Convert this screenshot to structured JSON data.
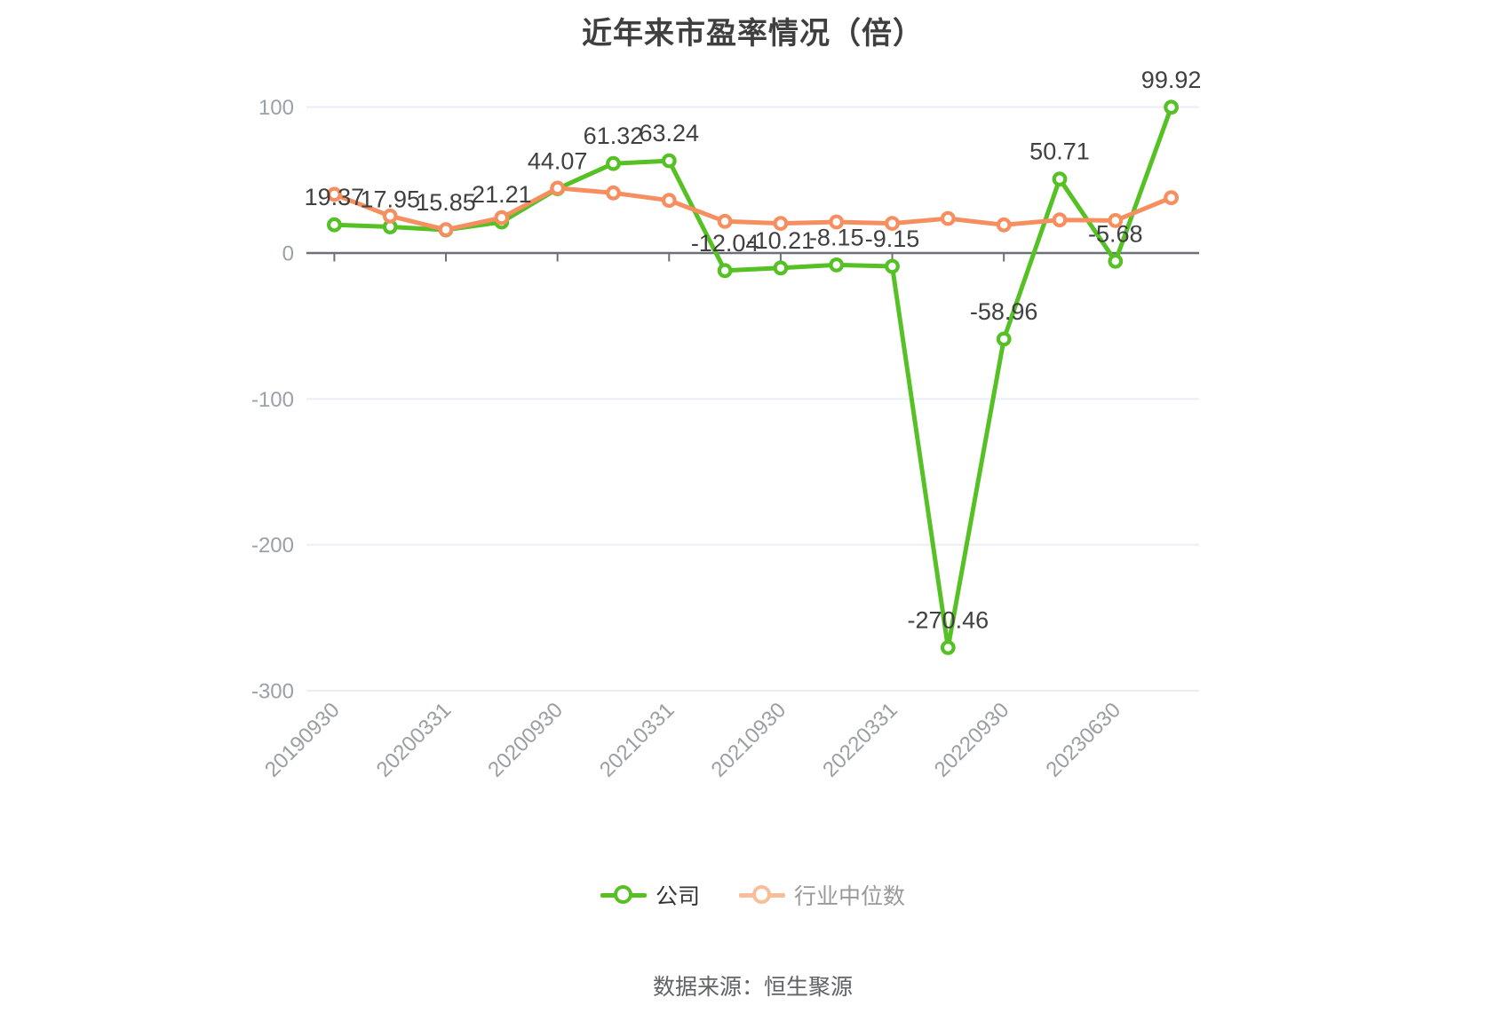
{
  "title": "近年来市盈率情况（倍）",
  "source": "数据来源：恒生聚源",
  "legend": {
    "items": [
      {
        "label": "公司",
        "icon_color": "#55c125",
        "text_color": "#333333"
      },
      {
        "label": "行业中位数",
        "icon_color": "#f9bd9a",
        "text_color": "#999999"
      }
    ]
  },
  "colors": {
    "company_line": "#55c125",
    "industry_line": "#f78e60",
    "gridline": "#e9edf6",
    "axis_line": "#6e7079",
    "y_axis_label": "#9ca0a8",
    "x_axis_label": "#9b9ea3",
    "data_label": "#404040",
    "marker_fill": "#ffffff",
    "title": "#3f3f3f"
  },
  "chart_data": {
    "type": "line",
    "categories": [
      "20190930",
      "",
      "20200331",
      "",
      "20200930",
      "",
      "20210331",
      "",
      "20210930",
      "",
      "20220331",
      "",
      "20220930",
      "",
      "20230630",
      ""
    ],
    "series": [
      {
        "name": "公司",
        "color": "#55c125",
        "labels_shown": true,
        "values": [
          19.37,
          17.95,
          15.85,
          21.21,
          44.07,
          61.32,
          63.24,
          -12.04,
          -10.21,
          -8.15,
          -9.15,
          -270.46,
          -58.96,
          50.71,
          -5.68,
          99.92
        ]
      },
      {
        "name": "行业中位数",
        "color": "#f78e60",
        "labels_shown": false,
        "values_estimated": true,
        "values": [
          40.2,
          25.4,
          16.0,
          24.2,
          44.5,
          41.2,
          36.1,
          21.7,
          20.3,
          21.3,
          20.3,
          23.7,
          19.3,
          22.7,
          22.3,
          37.9
        ]
      }
    ],
    "ylim": [
      -300,
      100
    ],
    "y_ticks": [
      100,
      0,
      -100,
      -200,
      -300
    ],
    "grid": true,
    "x_label_rotation": -45,
    "legend_position": "bottom",
    "title": "近年来市盈率情况（倍）",
    "xlabel": "",
    "ylabel": ""
  }
}
